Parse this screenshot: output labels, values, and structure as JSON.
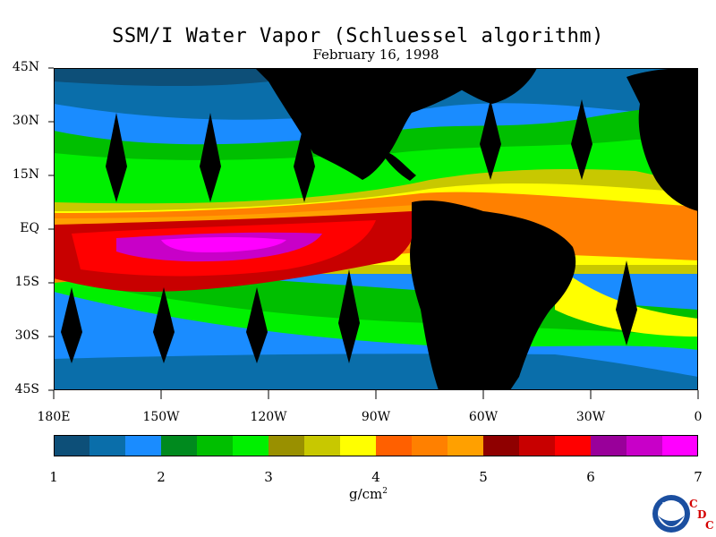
{
  "header": {
    "title": "SSM/I Water Vapor (Schluessel algorithm)",
    "date": "February 16, 1998"
  },
  "map": {
    "lat_ticks": [
      "45N",
      "30N",
      "15N",
      "EQ",
      "15S",
      "30S",
      "45S"
    ],
    "lon_ticks": [
      "180E",
      "150W",
      "120W",
      "90W",
      "60W",
      "30W",
      "0"
    ]
  },
  "colorbar": {
    "labels": [
      "1",
      "2",
      "3",
      "4",
      "5",
      "6",
      "7"
    ],
    "unit": "g/cm",
    "unit_sup": "2",
    "colors": [
      "#0d4f78",
      "#0a6eaa",
      "#1a8cff",
      "#008a1e",
      "#00bf00",
      "#00f000",
      "#999000",
      "#c8c800",
      "#ffff00",
      "#ff6000",
      "#ff8000",
      "#ffa000",
      "#8f0000",
      "#c80000",
      "#ff0000",
      "#99009a",
      "#c800c8",
      "#ff00ff"
    ]
  },
  "logo": {
    "agency": "NOAA",
    "letters": [
      "C",
      "D",
      "C"
    ]
  }
}
